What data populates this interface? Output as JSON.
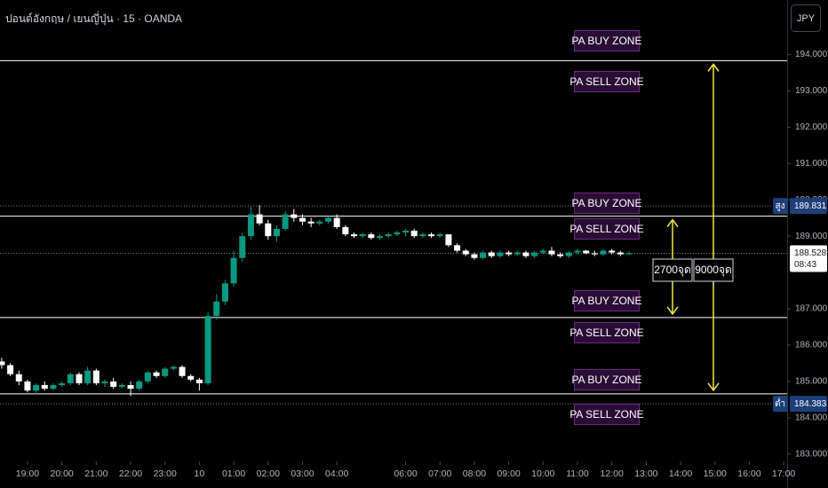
{
  "header": {
    "symbol": "ปอนด์อังกฤษ / เยนญี่ปุ่น · 15 · OANDA",
    "currency_button": "JPY"
  },
  "chart_data": {
    "type": "candlestick",
    "up_color": "#089981",
    "down_color": "#ffffff",
    "x": [
      18.25,
      18.5,
      18.75,
      19,
      19.25,
      19.5,
      19.75,
      20,
      20.25,
      20.5,
      20.75,
      21,
      21.25,
      21.5,
      21.75,
      22,
      22.25,
      22.5,
      22.75,
      23,
      23.25,
      23.5,
      23.75,
      24,
      24.25,
      24.5,
      24.75,
      25,
      25.25,
      25.5,
      25.75,
      26,
      26.25,
      26.5,
      26.75,
      27,
      27.25,
      27.5,
      27.75,
      28,
      28.25,
      28.5,
      28.75,
      29,
      29.25,
      29.5,
      29.75,
      30,
      30.25,
      30.5,
      30.75,
      31,
      31.25,
      31.5,
      31.75,
      32,
      32.25,
      32.5,
      32.75,
      33,
      33.25,
      33.5,
      33.75,
      34,
      34.25,
      34.5,
      34.75,
      35,
      35.25,
      35.5,
      35.75,
      36,
      36.25,
      36.5
    ],
    "open": [
      185.55,
      185.45,
      185.2,
      185.0,
      184.75,
      184.9,
      184.8,
      184.9,
      184.95,
      185.2,
      184.95,
      185.3,
      184.95,
      185.0,
      184.85,
      184.9,
      184.8,
      185.0,
      185.25,
      185.15,
      185.35,
      185.4,
      185.15,
      185.05,
      184.95,
      186.8,
      187.2,
      187.7,
      188.4,
      189.0,
      189.6,
      189.35,
      189.0,
      189.2,
      189.6,
      189.5,
      189.4,
      189.35,
      189.4,
      189.5,
      189.25,
      189.05,
      189.0,
      189.05,
      188.95,
      189.0,
      189.05,
      189.1,
      189.15,
      189.0,
      189.05,
      189.0,
      189.05,
      188.75,
      188.6,
      188.5,
      188.4,
      188.55,
      188.45,
      188.55,
      188.5,
      188.55,
      188.45,
      188.55,
      188.6,
      188.5,
      188.45,
      188.55,
      188.6,
      188.53,
      188.5,
      188.6,
      188.55,
      188.5
    ],
    "high": [
      185.65,
      185.5,
      185.3,
      185.05,
      184.95,
      185.0,
      184.95,
      185.0,
      185.25,
      185.25,
      185.4,
      185.35,
      185.05,
      185.1,
      184.95,
      185.0,
      185.05,
      185.3,
      185.3,
      185.4,
      185.45,
      185.45,
      185.2,
      185.1,
      186.9,
      187.4,
      187.8,
      188.6,
      189.1,
      189.8,
      189.85,
      189.45,
      189.3,
      189.7,
      189.75,
      189.6,
      189.5,
      189.45,
      189.55,
      189.6,
      189.3,
      189.1,
      189.1,
      189.1,
      189.05,
      189.1,
      189.15,
      189.2,
      189.2,
      189.1,
      189.1,
      189.1,
      189.05,
      188.8,
      188.65,
      188.55,
      188.6,
      188.6,
      188.6,
      188.6,
      188.6,
      188.6,
      188.6,
      188.65,
      188.7,
      188.55,
      188.6,
      188.65,
      188.62,
      188.6,
      188.65,
      188.65,
      188.6,
      188.58
    ],
    "low": [
      185.35,
      185.15,
      184.9,
      184.7,
      184.65,
      184.75,
      184.75,
      184.85,
      184.9,
      184.9,
      184.9,
      184.9,
      184.85,
      184.8,
      184.8,
      184.6,
      184.75,
      184.95,
      185.1,
      185.1,
      185.3,
      185.1,
      185.0,
      184.75,
      184.9,
      186.7,
      187.1,
      187.6,
      188.3,
      188.9,
      189.3,
      188.9,
      188.85,
      189.15,
      189.4,
      189.3,
      189.25,
      189.3,
      189.35,
      189.2,
      189.0,
      188.95,
      188.95,
      188.9,
      188.9,
      188.95,
      189.0,
      189.0,
      188.95,
      188.95,
      188.95,
      188.95,
      188.7,
      188.55,
      188.45,
      188.35,
      188.35,
      188.4,
      188.4,
      188.45,
      188.45,
      188.4,
      188.4,
      188.5,
      188.45,
      188.4,
      188.4,
      188.5,
      188.5,
      188.45,
      188.45,
      188.5,
      188.45,
      188.48
    ],
    "close": [
      185.45,
      185.2,
      185.0,
      184.75,
      184.9,
      184.8,
      184.9,
      184.95,
      185.2,
      184.95,
      185.3,
      184.95,
      185.0,
      184.85,
      184.9,
      184.8,
      185.0,
      185.25,
      185.15,
      185.35,
      185.4,
      185.15,
      185.05,
      184.95,
      186.8,
      187.2,
      187.7,
      188.4,
      189.0,
      189.6,
      189.35,
      189.0,
      189.2,
      189.6,
      189.5,
      189.4,
      189.35,
      189.4,
      189.5,
      189.25,
      189.05,
      189.0,
      189.05,
      188.95,
      189.0,
      189.05,
      189.1,
      189.15,
      189.0,
      189.05,
      189.0,
      189.05,
      188.75,
      188.6,
      188.5,
      188.4,
      188.55,
      188.45,
      188.55,
      188.5,
      188.55,
      188.45,
      188.55,
      188.6,
      188.5,
      188.45,
      188.55,
      188.6,
      188.53,
      188.5,
      188.6,
      188.55,
      188.5,
      188.53
    ],
    "xlim": [
      18.2,
      41.1
    ],
    "xticks": [
      {
        "value": 19,
        "label": "19:00"
      },
      {
        "value": 20,
        "label": "20:00"
      },
      {
        "value": 21,
        "label": "21:00"
      },
      {
        "value": 22,
        "label": "22:00"
      },
      {
        "value": 23,
        "label": "23:00"
      },
      {
        "value": 24,
        "label": "10"
      },
      {
        "value": 25,
        "label": "01:00"
      },
      {
        "value": 26,
        "label": "02:00"
      },
      {
        "value": 27,
        "label": "03:00"
      },
      {
        "value": 28,
        "label": "04:00"
      },
      {
        "value": 30,
        "label": "06:00"
      },
      {
        "value": 31,
        "label": "07:00"
      },
      {
        "value": 32,
        "label": "08:00"
      },
      {
        "value": 33,
        "label": "09:00"
      },
      {
        "value": 34,
        "label": "10:00"
      },
      {
        "value": 35,
        "label": "11:00"
      },
      {
        "value": 36,
        "label": "12:00"
      },
      {
        "value": 37,
        "label": "13:00"
      },
      {
        "value": 38,
        "label": "14:00"
      },
      {
        "value": 39,
        "label": "15:00"
      },
      {
        "value": 40,
        "label": "16:00"
      },
      {
        "value": 41,
        "label": "17:00"
      }
    ],
    "ylim": [
      182.8,
      195.5
    ],
    "yticks": [
      {
        "value": 194,
        "label": "194.000"
      },
      {
        "value": 193,
        "label": "193.000"
      },
      {
        "value": 192,
        "label": "192.000"
      },
      {
        "value": 191,
        "label": "191.000"
      },
      {
        "value": 190,
        "label": "190.000"
      },
      {
        "value": 189,
        "label": "189.000"
      },
      {
        "value": 187,
        "label": "187.000"
      },
      {
        "value": 186,
        "label": "186.000"
      },
      {
        "value": 185,
        "label": "185.000"
      },
      {
        "value": 184,
        "label": "184.000"
      },
      {
        "value": 183,
        "label": "183.000"
      }
    ],
    "levels": [
      193.83,
      189.55,
      186.76,
      184.66
    ],
    "zones": [
      "PA BUY ZONE",
      "PA SELL ZONE",
      "PA BUY ZONE",
      "PA SELL ZONE",
      "PA BUY ZONE",
      "PA SELL ZONE",
      "PA BUY ZONE",
      "PA SELL ZONE"
    ],
    "arrows": [
      "2700จุด",
      "9000จุด"
    ],
    "high_marker": {
      "label": "สูง",
      "value": 189.831
    },
    "low_marker": {
      "label": "ต่ำ",
      "value": 184.383
    },
    "last_price": 188.528,
    "countdown": "08:43"
  }
}
